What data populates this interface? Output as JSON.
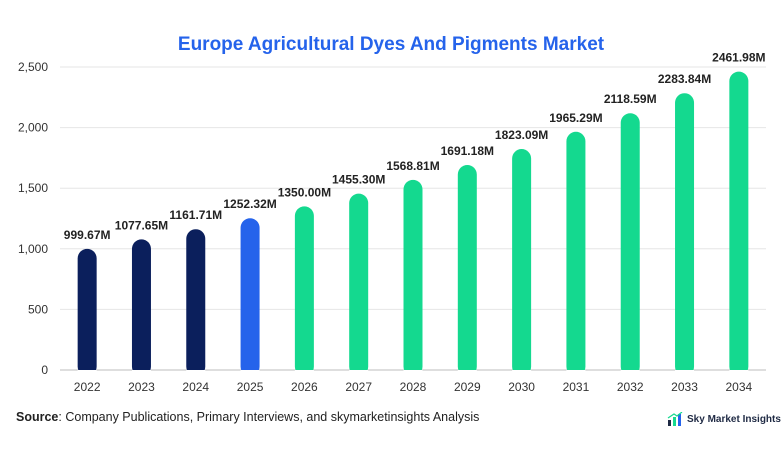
{
  "chart_data": {
    "type": "bar",
    "title": "Europe Agricultural Dyes And Pigments Market",
    "categories": [
      "2022",
      "2023",
      "2024",
      "2025",
      "2026",
      "2027",
      "2028",
      "2029",
      "2030",
      "2031",
      "2032",
      "2033",
      "2034"
    ],
    "values": [
      999.67,
      1077.65,
      1161.71,
      1252.32,
      1350.0,
      1455.3,
      1568.81,
      1691.18,
      1823.09,
      1965.29,
      2118.59,
      2283.84,
      2461.98
    ],
    "data_labels": [
      "999.67M",
      "1077.65M",
      "1161.71M",
      "1252.32M",
      "1350.00M",
      "1455.30M",
      "1568.81M",
      "1691.18M",
      "1823.09M",
      "1965.29M",
      "2118.59M",
      "2283.84M",
      "2461.98M"
    ],
    "ylim": [
      0,
      2500
    ],
    "yticks": [
      0,
      500,
      1000,
      1500,
      2000,
      2500
    ],
    "ytick_labels": [
      "0",
      "500",
      "1,000",
      "1,500",
      "2,000",
      "2,500"
    ],
    "xlabel": "",
    "ylabel": "",
    "grid": true,
    "colors": {
      "historical": "#0b1f5c",
      "current": "#2563eb",
      "forecast": "#14d98f"
    },
    "bar_color_groups": [
      "historical",
      "historical",
      "historical",
      "current",
      "forecast",
      "forecast",
      "forecast",
      "forecast",
      "forecast",
      "forecast",
      "forecast",
      "forecast",
      "forecast"
    ]
  },
  "source": {
    "label": "Source",
    "text": ": Company Publications, Primary Interviews, and skymarketinsights Analysis"
  },
  "brand": {
    "name": "Sky Market Insights",
    "logo_icon": "bar-chart-arrow-icon"
  }
}
